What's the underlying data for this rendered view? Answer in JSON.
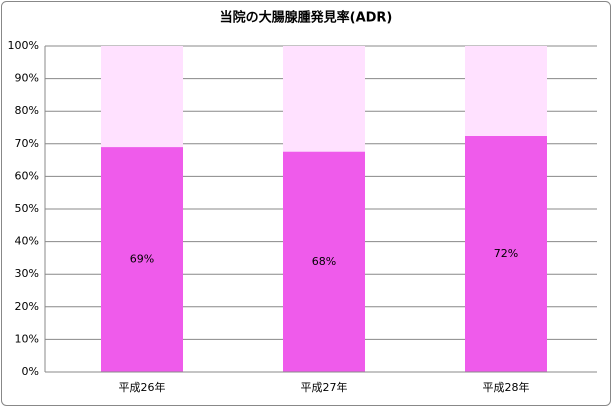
{
  "chart_data": {
    "type": "stacked-bar",
    "title": "当院の大腸腺腫発見率(ADR)",
    "categories": [
      "平成26年",
      "平成27年",
      "平成28年"
    ],
    "series": [
      {
        "color": "#ef5beb",
        "values": [
          69,
          67.6,
          72.4
        ],
        "value_labels": [
          "69%",
          "68%",
          "72%"
        ]
      },
      {
        "color": "#ffe1ff",
        "values": [
          31,
          32.4,
          27.6
        ]
      }
    ],
    "ylim": [
      0,
      100
    ],
    "yticks": [
      {
        "value": 0,
        "label": "0%"
      },
      {
        "value": 10,
        "label": "10%"
      },
      {
        "value": 20,
        "label": "20%"
      },
      {
        "value": 30,
        "label": "30%"
      },
      {
        "value": 40,
        "label": "40%"
      },
      {
        "value": 50,
        "label": "50%"
      },
      {
        "value": 60,
        "label": "60%"
      },
      {
        "value": 70,
        "label": "70%"
      },
      {
        "value": 80,
        "label": "80%"
      },
      {
        "value": 90,
        "label": "90%"
      },
      {
        "value": 100,
        "label": "100%"
      }
    ],
    "grid": true
  }
}
